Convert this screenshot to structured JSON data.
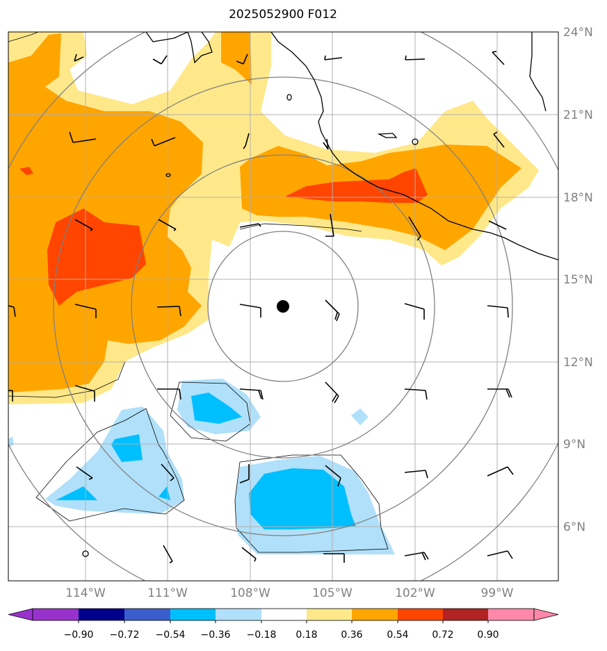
{
  "title": "2025052900 F012",
  "lat_labels": [
    "24°N",
    "21°N",
    "18°N",
    "15°N",
    "12°N",
    "9°N",
    "6°N"
  ],
  "lon_labels": [
    "114°W",
    "111°W",
    "108°W",
    "105°W",
    "102°W",
    "99°W"
  ],
  "colorbar": {
    "tick_labels": [
      "−0.90",
      "−0.72",
      "−0.54",
      "−0.36",
      "−0.18",
      "0.18",
      "0.36",
      "0.54",
      "0.72",
      "0.90"
    ],
    "colors": [
      "#9932cc",
      "#00008b",
      "#3a5fcd",
      "#00bfff",
      "#b0e0fa",
      "#ffffff",
      "#ffe88a",
      "#ffa500",
      "#ff4500",
      "#b22222",
      "#ff88aa"
    ]
  },
  "colors": {
    "grid": "#b0b0b0",
    "range_rings": "#808080",
    "coastline": "#000000",
    "axis_label": "#808080",
    "center_marker": "#000000"
  },
  "icons": {
    "center_marker": "filled-circle",
    "wind_barbs": "wind-barb"
  }
}
